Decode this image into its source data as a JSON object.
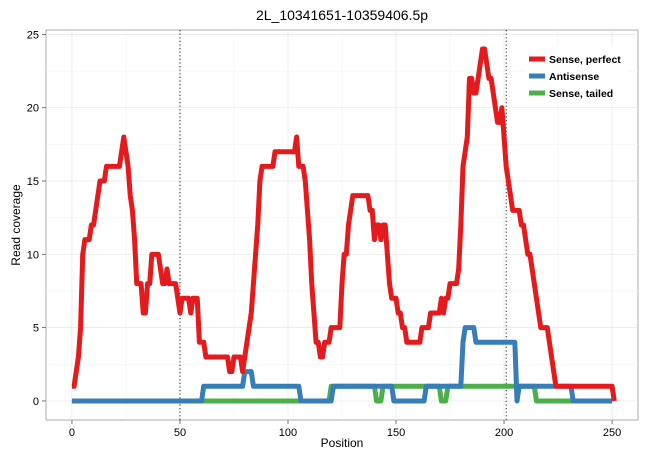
{
  "chart_data": {
    "type": "line",
    "title": "2L_10341651-10359406.5p",
    "xlabel": "Position",
    "ylabel": "Read coverage",
    "xlim": [
      -12,
      262
    ],
    "ylim": [
      -1.3,
      25.3
    ],
    "x_ticks": [
      0,
      50,
      100,
      150,
      200,
      250
    ],
    "y_ticks": [
      0,
      5,
      10,
      15,
      20,
      25
    ],
    "vlines": [
      50,
      201
    ],
    "grid": true,
    "legend_position": "top-right",
    "series": [
      {
        "name": "Sense, perfect",
        "color": "#E41A1C",
        "points": [
          [
            0,
            1
          ],
          [
            1,
            1
          ],
          [
            2,
            2
          ],
          [
            3,
            3
          ],
          [
            4,
            5
          ],
          [
            5,
            10
          ],
          [
            6,
            11
          ],
          [
            7,
            11
          ],
          [
            8,
            11
          ],
          [
            9,
            12
          ],
          [
            10,
            12
          ],
          [
            11,
            13
          ],
          [
            12,
            14
          ],
          [
            13,
            15
          ],
          [
            14,
            15
          ],
          [
            15,
            15
          ],
          [
            16,
            16
          ],
          [
            17,
            16
          ],
          [
            18,
            16
          ],
          [
            19,
            16
          ],
          [
            20,
            16
          ],
          [
            21,
            16
          ],
          [
            22,
            16
          ],
          [
            23,
            17
          ],
          [
            24,
            18
          ],
          [
            25,
            17
          ],
          [
            26,
            16
          ],
          [
            27,
            14
          ],
          [
            28,
            13
          ],
          [
            29,
            11
          ],
          [
            30,
            8
          ],
          [
            31,
            8
          ],
          [
            32,
            8
          ],
          [
            33,
            6
          ],
          [
            34,
            6
          ],
          [
            35,
            8
          ],
          [
            36,
            8
          ],
          [
            37,
            10
          ],
          [
            38,
            10
          ],
          [
            39,
            10
          ],
          [
            40,
            10
          ],
          [
            41,
            9
          ],
          [
            42,
            8
          ],
          [
            43,
            8
          ],
          [
            44,
            9
          ],
          [
            45,
            8
          ],
          [
            46,
            8
          ],
          [
            47,
            8
          ],
          [
            48,
            8
          ],
          [
            49,
            7
          ],
          [
            50,
            6
          ],
          [
            51,
            7
          ],
          [
            52,
            7
          ],
          [
            53,
            7
          ],
          [
            54,
            7
          ],
          [
            55,
            6
          ],
          [
            56,
            7
          ],
          [
            57,
            7
          ],
          [
            58,
            7
          ],
          [
            59,
            4
          ],
          [
            60,
            4
          ],
          [
            61,
            4
          ],
          [
            62,
            3
          ],
          [
            63,
            3
          ],
          [
            64,
            3
          ],
          [
            65,
            3
          ],
          [
            66,
            3
          ],
          [
            67,
            3
          ],
          [
            68,
            3
          ],
          [
            69,
            3
          ],
          [
            70,
            3
          ],
          [
            71,
            3
          ],
          [
            72,
            3
          ],
          [
            73,
            2
          ],
          [
            74,
            2
          ],
          [
            75,
            3
          ],
          [
            76,
            3
          ],
          [
            77,
            3
          ],
          [
            78,
            3
          ],
          [
            79,
            2
          ],
          [
            80,
            3
          ],
          [
            81,
            4
          ],
          [
            82,
            5
          ],
          [
            83,
            6
          ],
          [
            84,
            8
          ],
          [
            85,
            10
          ],
          [
            86,
            12
          ],
          [
            87,
            15
          ],
          [
            88,
            16
          ],
          [
            89,
            16
          ],
          [
            90,
            16
          ],
          [
            91,
            16
          ],
          [
            92,
            16
          ],
          [
            93,
            16
          ],
          [
            94,
            17
          ],
          [
            95,
            17
          ],
          [
            96,
            17
          ],
          [
            97,
            17
          ],
          [
            98,
            17
          ],
          [
            99,
            17
          ],
          [
            100,
            17
          ],
          [
            101,
            17
          ],
          [
            102,
            17
          ],
          [
            103,
            17
          ],
          [
            104,
            18
          ],
          [
            105,
            16
          ],
          [
            106,
            16
          ],
          [
            107,
            16
          ],
          [
            108,
            15
          ],
          [
            109,
            13
          ],
          [
            110,
            11
          ],
          [
            111,
            8
          ],
          [
            112,
            6
          ],
          [
            113,
            4
          ],
          [
            114,
            4
          ],
          [
            115,
            3
          ],
          [
            116,
            3
          ],
          [
            117,
            4
          ],
          [
            118,
            4
          ],
          [
            119,
            4
          ],
          [
            120,
            5
          ],
          [
            121,
            5
          ],
          [
            122,
            5
          ],
          [
            123,
            5
          ],
          [
            124,
            5
          ],
          [
            125,
            8
          ],
          [
            126,
            10
          ],
          [
            127,
            10
          ],
          [
            128,
            12
          ],
          [
            129,
            13
          ],
          [
            130,
            14
          ],
          [
            131,
            14
          ],
          [
            132,
            14
          ],
          [
            133,
            14
          ],
          [
            134,
            14
          ],
          [
            135,
            14
          ],
          [
            136,
            14
          ],
          [
            137,
            14
          ],
          [
            138,
            13
          ],
          [
            139,
            13
          ],
          [
            140,
            11
          ],
          [
            141,
            12
          ],
          [
            142,
            12
          ],
          [
            143,
            11
          ],
          [
            144,
            12
          ],
          [
            145,
            12
          ],
          [
            146,
            10
          ],
          [
            147,
            8
          ],
          [
            148,
            7
          ],
          [
            149,
            7
          ],
          [
            150,
            7
          ],
          [
            151,
            6
          ],
          [
            152,
            6
          ],
          [
            153,
            5
          ],
          [
            154,
            5
          ],
          [
            155,
            4
          ],
          [
            156,
            4
          ],
          [
            157,
            4
          ],
          [
            158,
            4
          ],
          [
            159,
            4
          ],
          [
            160,
            4
          ],
          [
            161,
            4
          ],
          [
            162,
            5
          ],
          [
            163,
            5
          ],
          [
            164,
            5
          ],
          [
            165,
            5
          ],
          [
            166,
            6
          ],
          [
            167,
            6
          ],
          [
            168,
            6
          ],
          [
            169,
            6
          ],
          [
            170,
            6
          ],
          [
            171,
            7
          ],
          [
            172,
            6
          ],
          [
            173,
            7
          ],
          [
            174,
            7
          ],
          [
            175,
            8
          ],
          [
            176,
            8
          ],
          [
            177,
            8
          ],
          [
            178,
            8
          ],
          [
            179,
            9
          ],
          [
            180,
            12
          ],
          [
            181,
            16
          ],
          [
            182,
            17
          ],
          [
            183,
            18
          ],
          [
            184,
            22
          ],
          [
            185,
            22
          ],
          [
            186,
            21
          ],
          [
            187,
            21
          ],
          [
            188,
            22
          ],
          [
            189,
            23
          ],
          [
            190,
            24
          ],
          [
            191,
            24
          ],
          [
            192,
            23
          ],
          [
            193,
            22
          ],
          [
            194,
            22
          ],
          [
            195,
            21
          ],
          [
            196,
            20
          ],
          [
            197,
            19
          ],
          [
            198,
            19
          ],
          [
            199,
            20
          ],
          [
            200,
            18
          ],
          [
            201,
            16
          ],
          [
            202,
            15
          ],
          [
            203,
            14
          ],
          [
            204,
            13
          ],
          [
            205,
            13
          ],
          [
            206,
            13
          ],
          [
            207,
            13
          ],
          [
            208,
            12
          ],
          [
            209,
            12
          ],
          [
            210,
            11
          ],
          [
            211,
            10
          ],
          [
            212,
            10
          ],
          [
            213,
            9
          ],
          [
            214,
            8
          ],
          [
            215,
            7
          ],
          [
            216,
            6
          ],
          [
            217,
            5
          ],
          [
            218,
            5
          ],
          [
            219,
            5
          ],
          [
            220,
            5
          ],
          [
            221,
            4
          ],
          [
            222,
            3
          ],
          [
            223,
            2
          ],
          [
            224,
            1
          ],
          [
            225,
            1
          ],
          [
            226,
            1
          ],
          [
            227,
            1
          ],
          [
            228,
            1
          ],
          [
            229,
            1
          ],
          [
            230,
            1
          ],
          [
            231,
            1
          ],
          [
            232,
            1
          ],
          [
            233,
            1
          ],
          [
            234,
            1
          ],
          [
            235,
            1
          ],
          [
            236,
            1
          ],
          [
            237,
            1
          ],
          [
            238,
            1
          ],
          [
            239,
            1
          ],
          [
            240,
            1
          ],
          [
            241,
            1
          ],
          [
            242,
            1
          ],
          [
            243,
            1
          ],
          [
            244,
            1
          ],
          [
            245,
            1
          ],
          [
            246,
            1
          ],
          [
            247,
            1
          ],
          [
            248,
            1
          ],
          [
            249,
            1
          ],
          [
            250,
            1
          ],
          [
            251,
            0
          ]
        ]
      },
      {
        "name": "Antisense",
        "color": "#377EB8",
        "points": [
          [
            0,
            0
          ],
          [
            60,
            0
          ],
          [
            61,
            1
          ],
          [
            79,
            1
          ],
          [
            80,
            2
          ],
          [
            83,
            2
          ],
          [
            84,
            1
          ],
          [
            105,
            1
          ],
          [
            106,
            0
          ],
          [
            120,
            0
          ],
          [
            121,
            1
          ],
          [
            143,
            1
          ],
          [
            144,
            1
          ],
          [
            148,
            1
          ],
          [
            149,
            0
          ],
          [
            163,
            0
          ],
          [
            164,
            1
          ],
          [
            180,
            1
          ],
          [
            181,
            4
          ],
          [
            182,
            5
          ],
          [
            186,
            5
          ],
          [
            187,
            4
          ],
          [
            205,
            4
          ],
          [
            206,
            0
          ],
          [
            207,
            1
          ],
          [
            231,
            1
          ],
          [
            232,
            0
          ],
          [
            250,
            0
          ]
        ]
      },
      {
        "name": "Sense, tailed",
        "color": "#4DAF4A",
        "points": [
          [
            0,
            0
          ],
          [
            119,
            0
          ],
          [
            120,
            1
          ],
          [
            140,
            1
          ],
          [
            141,
            0
          ],
          [
            143,
            0
          ],
          [
            144,
            1
          ],
          [
            170,
            1
          ],
          [
            171,
            0
          ],
          [
            173,
            0
          ],
          [
            174,
            1
          ],
          [
            214,
            1
          ],
          [
            215,
            0
          ],
          [
            250,
            0
          ]
        ]
      }
    ]
  }
}
